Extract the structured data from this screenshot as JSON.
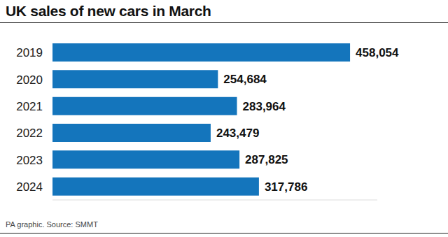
{
  "chart_data": {
    "type": "bar",
    "title": "UK sales of new cars in March",
    "subtitle": "PA graphic. Source: SMMT",
    "orientation": "horizontal",
    "categories": [
      "2019",
      "2020",
      "2021",
      "2022",
      "2023",
      "2024"
    ],
    "values": [
      458054,
      254684,
      283964,
      243479,
      287825,
      317786
    ],
    "value_labels": [
      "458,054",
      "254,684",
      "283,964",
      "243,479",
      "287,825",
      "317,786"
    ],
    "color": "#1475bc",
    "xlim": [
      0,
      500000
    ],
    "grid": false,
    "data_labels": true,
    "tick_labels": "y"
  }
}
